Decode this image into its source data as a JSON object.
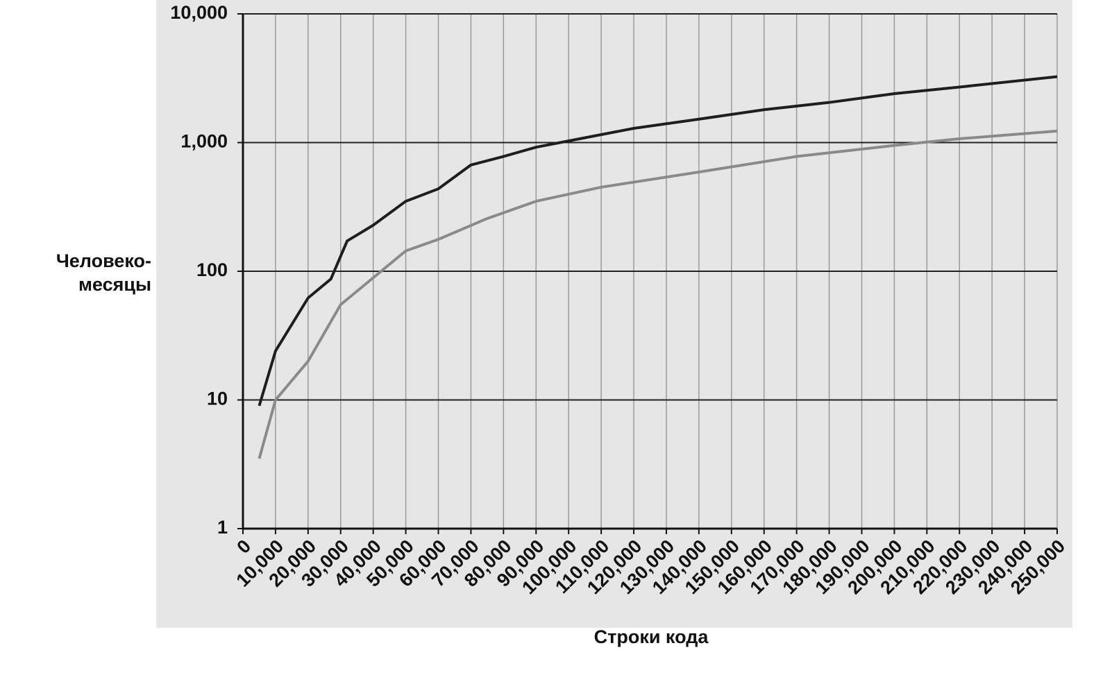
{
  "chart_data": {
    "type": "line",
    "y_label": [
      "Человеко-",
      "месяцы"
    ],
    "x_label": "Строки кода",
    "log_y": true,
    "grid": true,
    "xlim": [
      0,
      250000
    ],
    "xticks": [
      0,
      {
        "value": 10000,
        "label": "10,000"
      },
      {
        "value": 20000,
        "label": "20,000"
      },
      {
        "value": 30000,
        "label": "30,000"
      },
      {
        "value": 40000,
        "label": "40,000"
      },
      {
        "value": 50000,
        "label": "50,000"
      },
      {
        "value": 60000,
        "label": "60,000"
      },
      {
        "value": 70000,
        "label": "70,000"
      },
      {
        "value": 80000,
        "label": "80,000"
      },
      {
        "value": 90000,
        "label": "90,000"
      },
      {
        "value": 100000,
        "label": "100,000"
      },
      {
        "value": 110000,
        "label": "110,000"
      },
      {
        "value": 120000,
        "label": "120,000"
      },
      {
        "value": 130000,
        "label": "130,000"
      },
      {
        "value": 140000,
        "label": "140,000"
      },
      {
        "value": 150000,
        "label": "150,000"
      },
      {
        "value": 160000,
        "label": "160,000"
      },
      {
        "value": 170000,
        "label": "170,000"
      },
      {
        "value": 180000,
        "label": "180,000"
      },
      {
        "value": 190000,
        "label": "190,000"
      },
      {
        "value": 200000,
        "label": "200,000"
      },
      {
        "value": 210000,
        "label": "210,000"
      },
      {
        "value": 220000,
        "label": "220,000"
      },
      {
        "value": 230000,
        "label": "230,000"
      },
      {
        "value": 240000,
        "label": "240,000"
      },
      {
        "value": 250000,
        "label": "250,000"
      }
    ],
    "ylim": [
      1,
      10000
    ],
    "yticks": [
      1,
      10,
      100,
      {
        "value": 1000,
        "label": "1,000"
      },
      {
        "value": 10000,
        "label": "10,000"
      }
    ],
    "series": [
      {
        "color": "#1e1e1e",
        "x": [
          5000,
          10000,
          20000,
          27000,
          32000,
          40000,
          50000,
          60000,
          70000,
          80000,
          90000,
          100000,
          120000,
          140000,
          160000,
          180000,
          200000,
          220000,
          250000
        ],
        "values": [
          9,
          24,
          62,
          87,
          172,
          228,
          350,
          437,
          670,
          780,
          920,
          1030,
          1290,
          1520,
          1800,
          2050,
          2400,
          2700,
          3250
        ]
      },
      {
        "color": "#8a8a8a",
        "x": [
          5000,
          10000,
          20000,
          30000,
          40000,
          50000,
          60000,
          75000,
          90000,
          110000,
          140000,
          170000,
          200000,
          220000,
          250000
        ],
        "values": [
          3.5,
          10,
          20,
          55,
          89,
          144,
          177,
          257,
          350,
          450,
          590,
          780,
          950,
          1070,
          1230
        ]
      }
    ]
  }
}
